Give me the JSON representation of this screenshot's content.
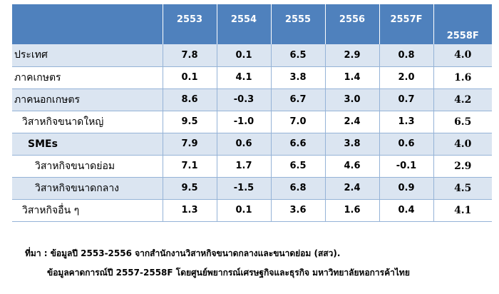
{
  "table": {
    "headers": [
      "2553",
      "2554",
      "2555",
      "2556",
      "2557F",
      "2558F"
    ],
    "rows": [
      {
        "label": "ประเทศ",
        "values": [
          "7.8",
          "0.1",
          "6.5",
          "2.9",
          "0.8",
          "4.0"
        ]
      },
      {
        "label": "ภาคเกษตร",
        "values": [
          "0.1",
          "4.1",
          "3.8",
          "1.4",
          "2.0",
          "1.6"
        ]
      },
      {
        "label": "ภาคนอกเกษตร",
        "values": [
          "8.6",
          "-0.3",
          "6.7",
          "3.0",
          "0.7",
          "4.2"
        ]
      },
      {
        "label": "วิสาหกิจขนาดใหญ่",
        "values": [
          "9.5",
          "-1.0",
          "7.0",
          "2.4",
          "1.3",
          "6.5"
        ]
      },
      {
        "label": "SMEs",
        "values": [
          "7.9",
          "0.6",
          "6.6",
          "3.8",
          "0.6",
          "4.0"
        ]
      },
      {
        "label": "วิสาหกิจขนาดย่อม",
        "values": [
          "7.1",
          "1.7",
          "6.5",
          "4.6",
          "-0.1",
          "2.9"
        ]
      },
      {
        "label": "วิสาหกิจขนาดกลาง",
        "values": [
          "9.5",
          "-1.5",
          "6.8",
          "2.4",
          "0.9",
          "4.5"
        ]
      },
      {
        "label": "วิสาหกิจอื่น ๆ",
        "values": [
          "1.3",
          "0.1",
          "3.6",
          "1.6",
          "0.4",
          "4.1"
        ]
      }
    ]
  },
  "notes": {
    "line1": "ที่มา : ข้อมูลปี 2553-2556 จากสำนักงานวิสาหกิจขนาดกลางและขนาดย่อม (สสว).",
    "line2": "ข้อมูลคาดการณ์ปี 2557-2558F โดยศูนย์พยากรณ์เศรษฐกิจและธุรกิจ มหาวิทยาลัยหอการค้าไทย"
  }
}
